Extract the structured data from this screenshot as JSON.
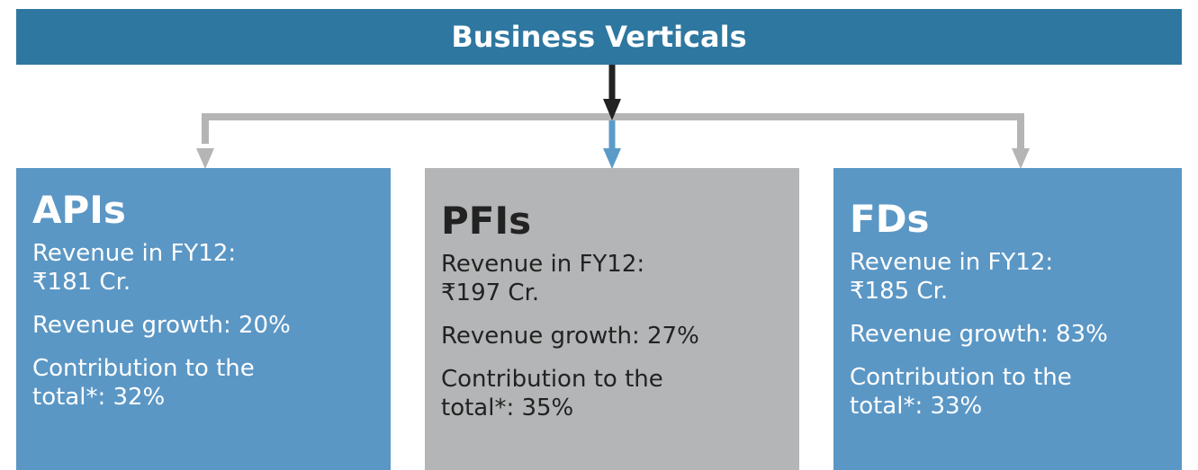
{
  "header": {
    "title": "Business Verticals"
  },
  "nodes": [
    {
      "name": "APIs",
      "revenue_label": "Revenue in FY12:",
      "revenue": "₹181 Cr.",
      "growth": "Revenue growth: 20%",
      "contribution_1": "Contribution to the",
      "contribution_2": "total*: 32%"
    },
    {
      "name": "PFIs",
      "revenue_label": "Revenue in FY12:",
      "revenue": "₹197 Cr.",
      "growth": "Revenue growth: 27%",
      "contribution_1": "Contribution to the",
      "contribution_2": "total*: 35%"
    },
    {
      "name": "FDs",
      "revenue_label": "Revenue in FY12:",
      "revenue": "₹185 Cr.",
      "growth": "Revenue growth: 83%",
      "contribution_1": "Contribution to the",
      "contribution_2": "total*: 33%"
    }
  ]
}
